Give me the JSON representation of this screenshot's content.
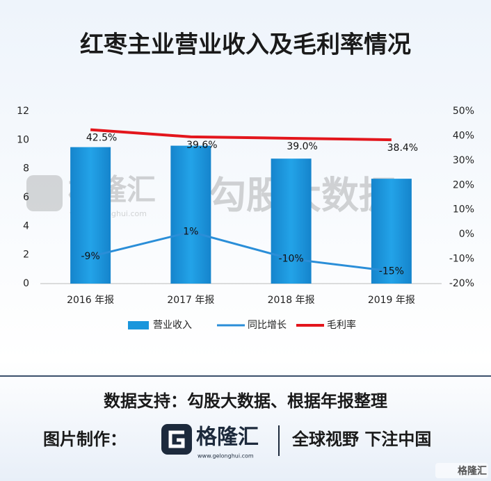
{
  "chart_data": {
    "type": "bar",
    "title": "红枣主业营业收入及毛利率情况",
    "categories": [
      "2016 年报",
      "2017 年报",
      "2018 年报",
      "2019 年报"
    ],
    "series": [
      {
        "name": "营业收入",
        "type": "bar",
        "color": "#1a96dc",
        "values": [
          9.5,
          9.6,
          8.7,
          7.3
        ]
      },
      {
        "name": "同比增长",
        "type": "line",
        "axis": "y2",
        "color": "#2a8ed8",
        "values": [
          -9,
          1,
          -10,
          -15
        ],
        "value_labels": [
          "-9%",
          "1%",
          "-10%",
          "-15%"
        ]
      },
      {
        "name": "毛利率",
        "type": "line",
        "axis": "y2",
        "color": "#e3161c",
        "values": [
          42.5,
          39.6,
          39.0,
          38.4
        ],
        "value_labels": [
          "42.5%",
          "39.6%",
          "39.0%",
          "38.4%"
        ]
      }
    ],
    "ylim": [
      0,
      12
    ],
    "yticks": [
      0,
      2,
      4,
      6,
      8,
      10,
      12
    ],
    "y2lim": [
      -20,
      50
    ],
    "y2ticks": [
      {
        "value": -20,
        "label": "-20%"
      },
      {
        "value": -10,
        "label": "-10%"
      },
      {
        "value": 0,
        "label": "0%"
      },
      {
        "value": 10,
        "label": "10%"
      },
      {
        "value": 20,
        "label": "20%"
      },
      {
        "value": 30,
        "label": "30%"
      },
      {
        "value": 40,
        "label": "40%"
      },
      {
        "value": 50,
        "label": "50%"
      }
    ],
    "legend": "bottom"
  },
  "watermark": {
    "brand": "格隆汇",
    "url": "www.gelonghui.com",
    "name": "勾股大数据"
  },
  "footer": {
    "source": "数据支持：勾股大数据、根据年报整理",
    "credit_label": "图片制作：",
    "brand": "格隆汇",
    "url": "www.gelonghui.com",
    "slogan": "全球视野 下注中国"
  },
  "corner_badge": "格隆汇"
}
